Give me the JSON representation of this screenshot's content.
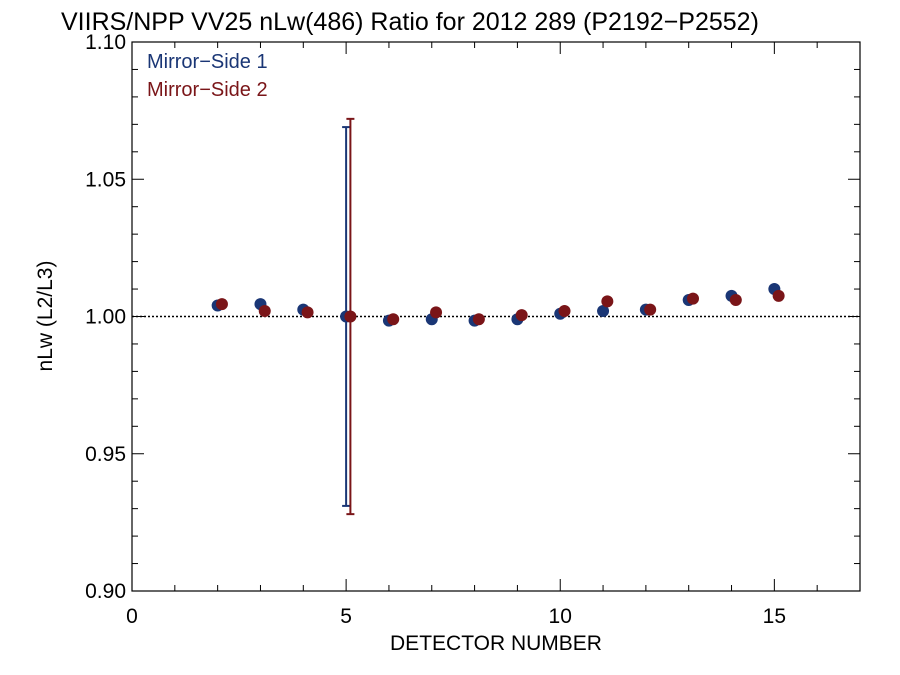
{
  "chart_data": {
    "type": "scatter",
    "title": "VIIRS/NPP VV25 nLw(486) Ratio for 2012 289 (P2192−P2552)",
    "xlabel": "DETECTOR NUMBER",
    "ylabel": "nLw (L2/L3)",
    "xlim": [
      0,
      17
    ],
    "ylim": [
      0.9,
      1.1
    ],
    "x_ticks": [
      0,
      5,
      10,
      15
    ],
    "x_tick_labels": [
      "0",
      "5",
      "10",
      "15"
    ],
    "y_ticks": [
      0.9,
      0.95,
      1.0,
      1.05,
      1.1
    ],
    "y_tick_labels": [
      "0.90",
      "0.95",
      "1.00",
      "1.05",
      "1.10"
    ],
    "reference_line": 1.0,
    "legend_position": "top-left",
    "series": [
      {
        "name": "Mirror−Side 1",
        "color": "#1a3675",
        "x": [
          2,
          3,
          4,
          5,
          6,
          7,
          8,
          9,
          10,
          11,
          12,
          13,
          14,
          15
        ],
        "values": [
          1.004,
          1.0045,
          1.0025,
          1.0,
          0.9985,
          0.999,
          0.9985,
          0.999,
          1.001,
          1.002,
          1.0025,
          1.006,
          1.0075,
          1.01
        ],
        "error_bar": {
          "x": 5,
          "low": 0.931,
          "high": 1.069
        }
      },
      {
        "name": "Mirror−Side 2",
        "color": "#7a1518",
        "x": [
          2.1,
          3.1,
          4.1,
          5.1,
          6.1,
          7.1,
          8.1,
          9.1,
          10.1,
          11.1,
          12.1,
          13.1,
          14.1,
          15.1
        ],
        "values": [
          1.0045,
          1.002,
          1.0015,
          1.0,
          0.999,
          1.0015,
          0.999,
          1.0005,
          1.002,
          1.0055,
          1.0025,
          1.0065,
          1.006,
          1.0075
        ],
        "error_bar": {
          "x": 5.1,
          "low": 0.928,
          "high": 1.072
        }
      }
    ]
  }
}
